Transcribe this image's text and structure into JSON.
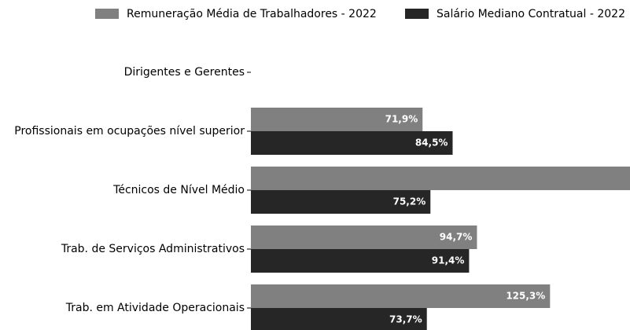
{
  "chart_data": {
    "type": "barh",
    "categories": [
      "Dirigentes e Gerentes",
      "Profissionais em ocupações nível superior",
      "Técnicos de Nível Médio",
      "Trab. de Serviços Administrativos",
      "Trab. em Atividade Operacionais"
    ],
    "series": [
      {
        "name": "Remuneração Média de Trabalhadores - 2022",
        "color": "#808080",
        "values": [
          null,
          71.9,
          160,
          94.7,
          125.3
        ],
        "value_labels": [
          null,
          "71,9%",
          null,
          "94,7%",
          "125,3%"
        ]
      },
      {
        "name": "Salário Mediano Contratual - 2022",
        "color": "#262626",
        "values": [
          null,
          84.5,
          75.2,
          91.4,
          73.7
        ],
        "value_labels": [
          null,
          "84,5%",
          "75,2%",
          "91,4%",
          "73,7%"
        ]
      }
    ],
    "xlim": [
      0,
      158.8
    ]
  }
}
